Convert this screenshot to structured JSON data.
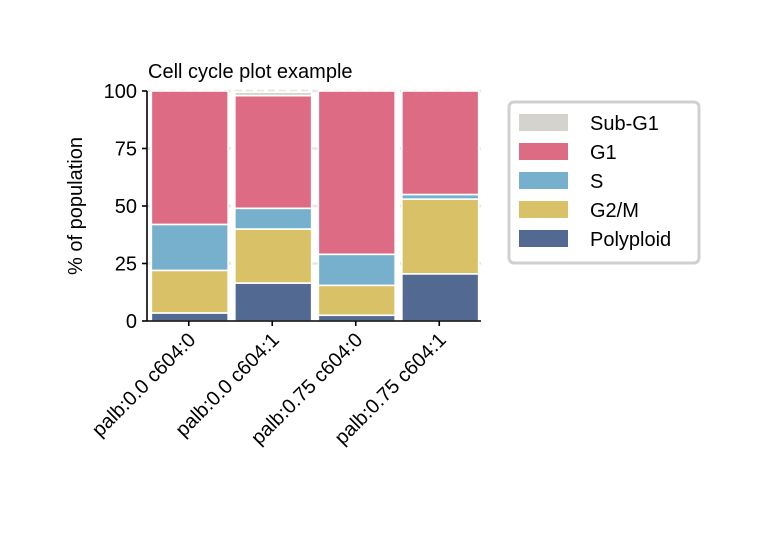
{
  "chart_data": {
    "type": "bar",
    "stacked": true,
    "title": "Cell cycle plot example",
    "xlabel": "",
    "ylabel": "% of population",
    "ylim": [
      0,
      100
    ],
    "yticks": [
      "0",
      "25",
      "50",
      "75",
      "100"
    ],
    "grid": "horizontal dashed",
    "legend_position": "right",
    "categories": [
      "palb:0.0 c604:0",
      "palb:0.0 c604:1",
      "palb:0.75 c604:0",
      "palb:0.75 c604:1"
    ],
    "series": [
      {
        "name": "Polyploid",
        "color": "#526a91",
        "values": [
          3.5,
          16.5,
          2.5,
          20.5
        ]
      },
      {
        "name": "G2/M",
        "color": "#d8c166",
        "values": [
          18.5,
          23.5,
          13,
          32.5
        ]
      },
      {
        "name": "S",
        "color": "#77b0cd",
        "values": [
          20,
          9,
          13.5,
          2
        ]
      },
      {
        "name": "G1",
        "color": "#dd6b83",
        "values": [
          58,
          49,
          71,
          45
        ]
      },
      {
        "name": "Sub-G1",
        "color": "#d4d3cd",
        "values": [
          0,
          1.5,
          0,
          0
        ]
      }
    ],
    "legend_order": [
      "Sub-G1",
      "G1",
      "S",
      "G2/M",
      "Polyploid"
    ]
  }
}
